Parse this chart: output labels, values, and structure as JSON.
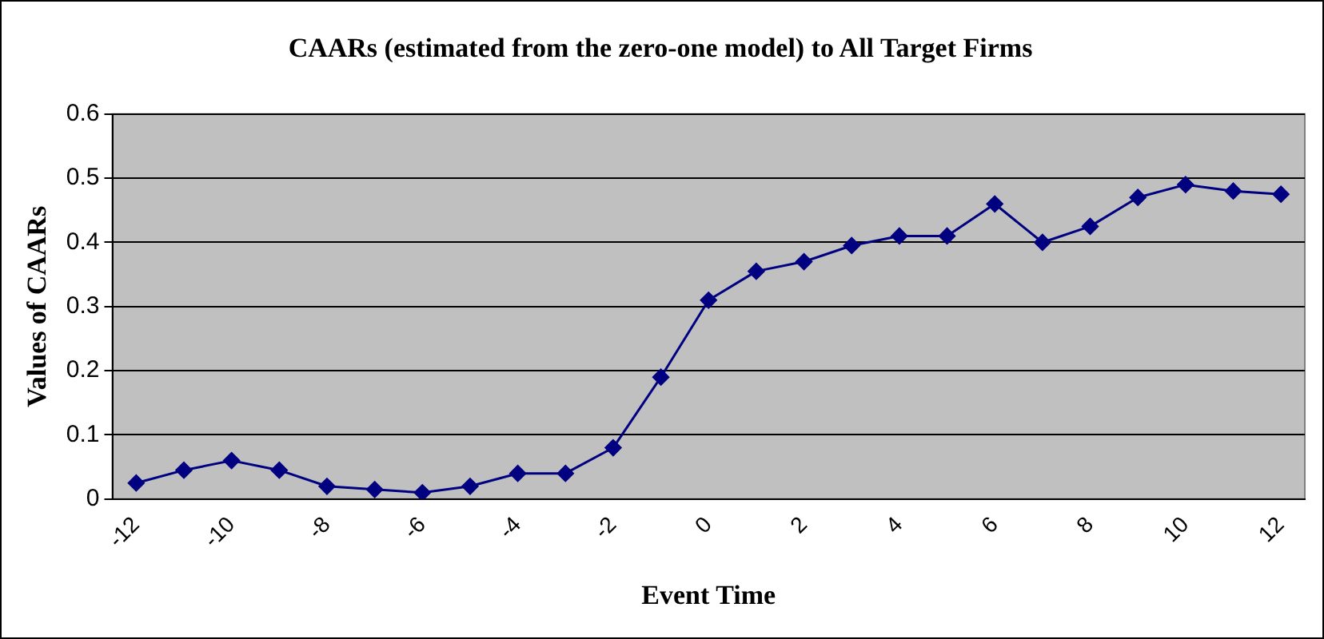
{
  "chart_data": {
    "type": "line",
    "title": "CAARs (estimated from the zero-one model) to All Target Firms",
    "xlabel": "Event Time",
    "ylabel": "Values of CAARs",
    "x": [
      -12,
      -11,
      -10,
      -9,
      -8,
      -7,
      -6,
      -5,
      -4,
      -3,
      -2,
      -1,
      0,
      1,
      2,
      3,
      4,
      5,
      6,
      7,
      8,
      9,
      10,
      11,
      12
    ],
    "series": [
      {
        "color": "#000080",
        "values": [
          0.025,
          0.045,
          0.06,
          0.045,
          0.02,
          0.015,
          0.01,
          0.02,
          0.04,
          0.04,
          0.08,
          0.19,
          0.31,
          0.355,
          0.37,
          0.395,
          0.41,
          0.41,
          0.46,
          0.4,
          0.425,
          0.47,
          0.49,
          0.48,
          0.475
        ]
      }
    ],
    "xlim": [
      -12.5,
      12.5
    ],
    "xticks": [
      -12,
      -10,
      -8,
      -6,
      -4,
      -2,
      0,
      2,
      4,
      6,
      8,
      10,
      12
    ],
    "ylim": [
      0,
      0.6
    ],
    "yticks": [
      0,
      0.1,
      0.2,
      0.3,
      0.4,
      0.5,
      0.6
    ],
    "grid": "y",
    "legend": false,
    "marker": "diamond",
    "line_style": "solid"
  }
}
